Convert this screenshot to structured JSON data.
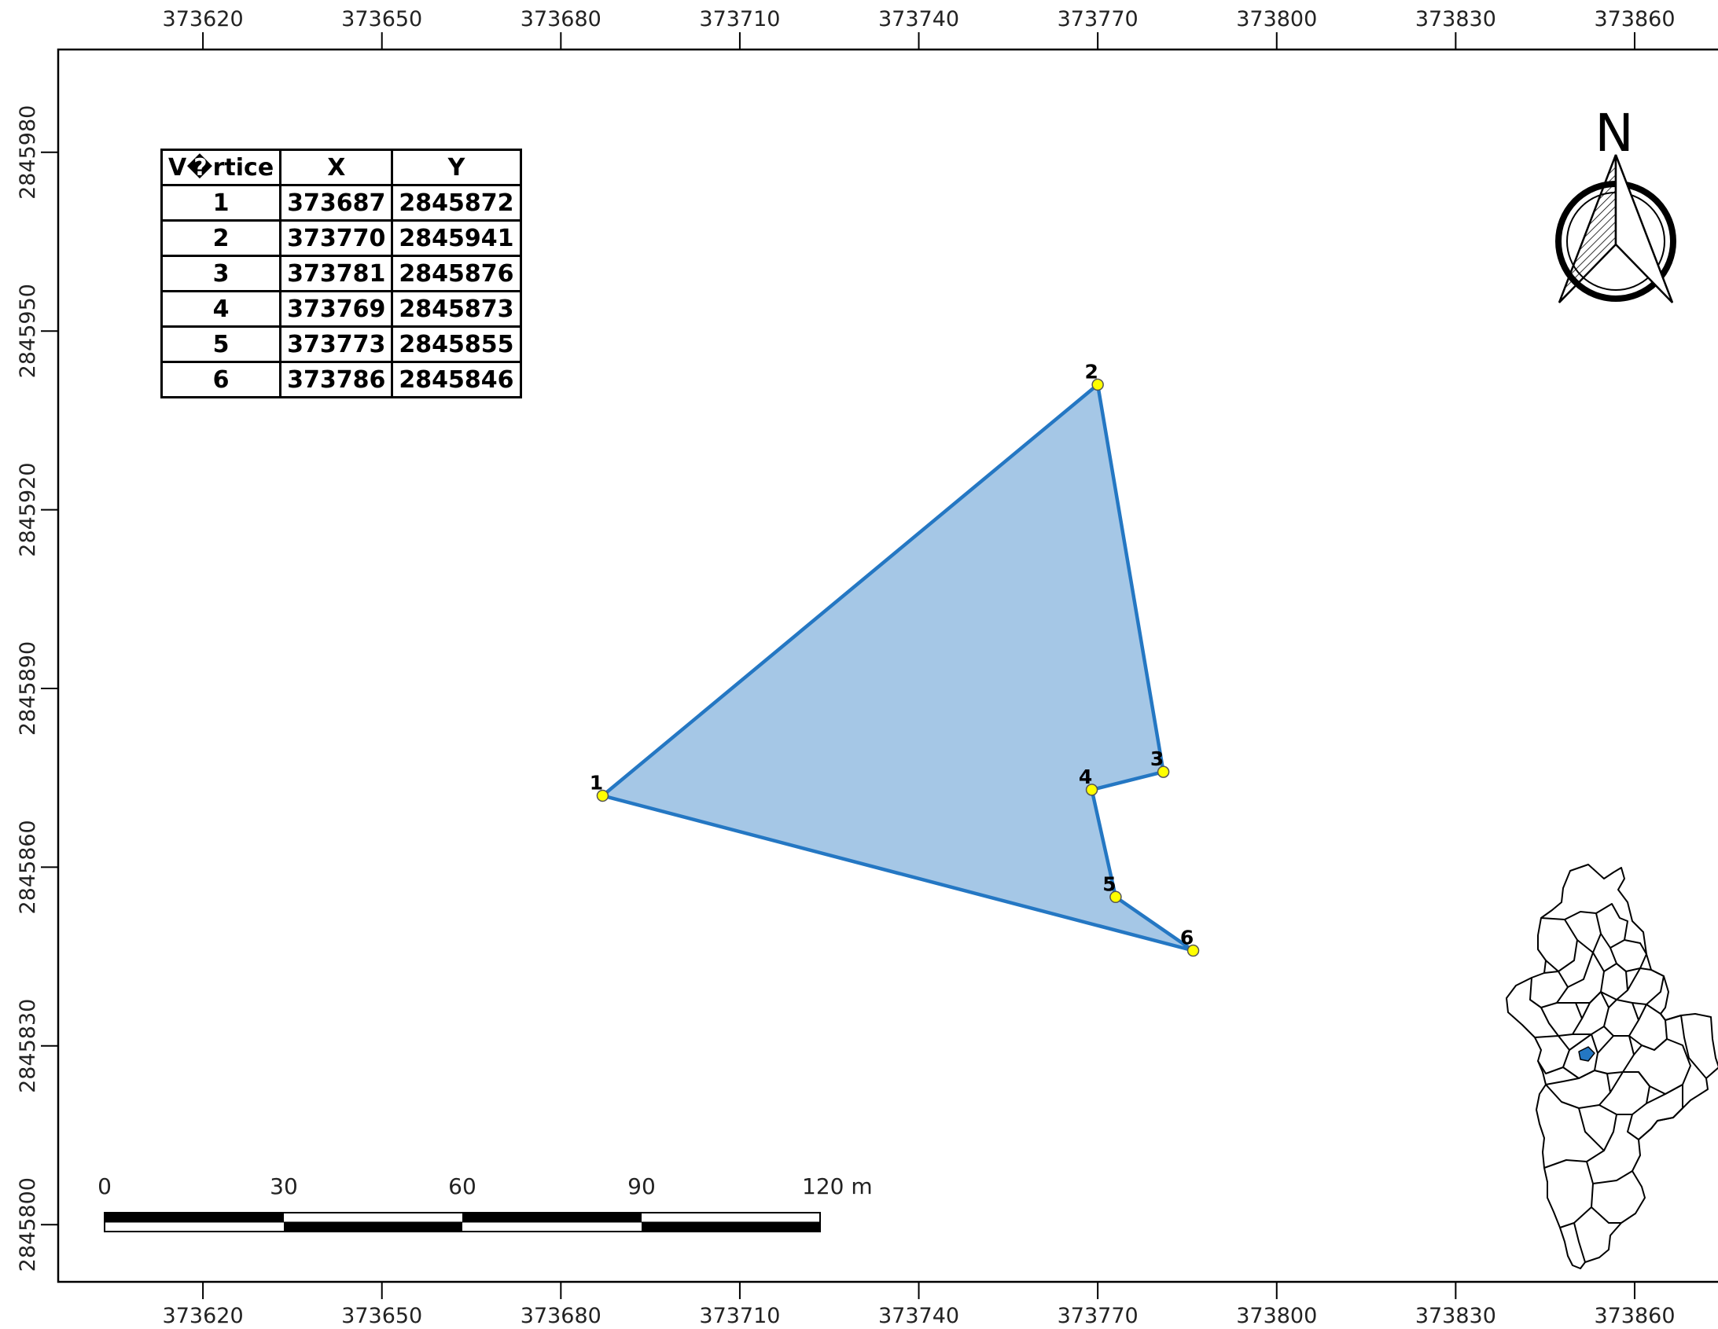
{
  "map": {
    "extent": {
      "xmin": 373595,
      "xmax": 373874,
      "ymin": 2845790,
      "ymax": 2845997
    },
    "x_ticks": [
      "373620",
      "373650",
      "373680",
      "373710",
      "373740",
      "373770",
      "373800",
      "373830",
      "373860"
    ],
    "y_ticks": [
      "2845980",
      "2845950",
      "2845920",
      "2845890",
      "2845860",
      "2845830",
      "2845800"
    ],
    "polygon": {
      "fill_color": "#a5c7e6",
      "stroke_color": "#2477c3",
      "vertex_color": "#ffff00",
      "vertices": [
        {
          "id": "1",
          "x": 373687,
          "y": 2845872
        },
        {
          "id": "2",
          "x": 373770,
          "y": 2845941
        },
        {
          "id": "3",
          "x": 373781,
          "y": 2845876
        },
        {
          "id": "4",
          "x": 373769,
          "y": 2845873
        },
        {
          "id": "5",
          "x": 373773,
          "y": 2845855
        },
        {
          "id": "6",
          "x": 373786,
          "y": 2845846
        }
      ]
    }
  },
  "table": {
    "headers": [
      "V�rtice",
      "X",
      "Y"
    ],
    "rows": [
      [
        "1",
        "373687",
        "2845872"
      ],
      [
        "2",
        "373770",
        "2845941"
      ],
      [
        "3",
        "373781",
        "2845876"
      ],
      [
        "4",
        "373769",
        "2845873"
      ],
      [
        "5",
        "373773",
        "2845855"
      ],
      [
        "6",
        "373786",
        "2845846"
      ]
    ]
  },
  "north_arrow": {
    "label": "N",
    "icon": "north-arrow-icon"
  },
  "scale_bar": {
    "labels": [
      "0",
      "30",
      "60",
      "90",
      "120 m"
    ]
  },
  "locator_map": {
    "icon": "locator-map-icon",
    "highlight_color": "#2477c3"
  }
}
